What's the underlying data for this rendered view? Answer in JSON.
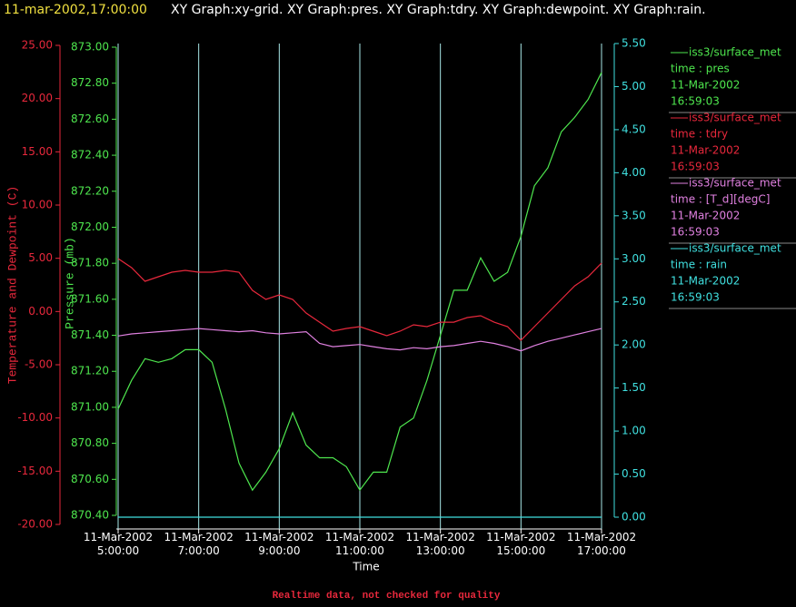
{
  "header": {
    "timestamp": "11-mar-2002,17:00:00",
    "title": "XY Graph:xy-grid.  XY Graph:pres.  XY Graph:tdry.  XY Graph:dewpoint.  XY Graph:rain."
  },
  "chart_data": {
    "type": "line",
    "xlabel": "Time",
    "ylabel": "Temperature and Dewpoint (C)",
    "y2label": "Pressure (mb)",
    "footer": "Realtime data, not checked for quality",
    "xlim": [
      "2002-03-11T05:00",
      "2002-03-11T17:00"
    ],
    "xticks": [
      {
        "value": "2002-03-11T05:00",
        "label": [
          "11-Mar-2002",
          "5:00:00"
        ]
      },
      {
        "value": "2002-03-11T07:00",
        "label": [
          "11-Mar-2002",
          "7:00:00"
        ]
      },
      {
        "value": "2002-03-11T09:00",
        "label": [
          "11-Mar-2002",
          "9:00:00"
        ]
      },
      {
        "value": "2002-03-11T11:00",
        "label": [
          "11-Mar-2002",
          "11:00:00"
        ]
      },
      {
        "value": "2002-03-11T13:00",
        "label": [
          "11-Mar-2002",
          "13:00:00"
        ]
      },
      {
        "value": "2002-03-11T15:00",
        "label": [
          "11-Mar-2002",
          "15:00:00"
        ]
      },
      {
        "value": "2002-03-11T17:00",
        "label": [
          "11-Mar-2002",
          "17:00:00"
        ]
      }
    ],
    "grid": true,
    "ycolor": "#e8283c",
    "ylim": [
      -20,
      25
    ],
    "yticks": [
      {
        "value": -20,
        "label": "-20.00"
      },
      {
        "value": -15,
        "label": "-15.00"
      },
      {
        "value": -10,
        "label": "-10.00"
      },
      {
        "value": -5,
        "label": "-5.00"
      },
      {
        "value": 0,
        "label": "0.00"
      },
      {
        "value": 5,
        "label": "5.00"
      },
      {
        "value": 10,
        "label": "10.00"
      },
      {
        "value": 15,
        "label": "15.00"
      },
      {
        "value": 20,
        "label": "20.00"
      },
      {
        "value": 25,
        "label": "25.00"
      }
    ],
    "y2color": "#4ee64e",
    "y2lim": [
      870.4,
      873.0
    ],
    "y2ticks": [
      {
        "value": 870.4,
        "label": "870.40"
      },
      {
        "value": 870.6,
        "label": "870.60"
      },
      {
        "value": 870.8,
        "label": "870.80"
      },
      {
        "value": 871.0,
        "label": "871.00"
      },
      {
        "value": 871.2,
        "label": "871.20"
      },
      {
        "value": 871.4,
        "label": "871.40"
      },
      {
        "value": 871.6,
        "label": "871.60"
      },
      {
        "value": 871.8,
        "label": "871.80"
      },
      {
        "value": 872.0,
        "label": "872.00"
      },
      {
        "value": 872.2,
        "label": "872.20"
      },
      {
        "value": 872.4,
        "label": "872.40"
      },
      {
        "value": 872.6,
        "label": "872.60"
      },
      {
        "value": 872.8,
        "label": "872.80"
      },
      {
        "value": 873.0,
        "label": "873.00"
      }
    ],
    "y3color": "#40e0e0",
    "y3lim": [
      0,
      5.5
    ],
    "y3ticks": [
      {
        "value": 0,
        "label": "0.00"
      },
      {
        "value": 0.5,
        "label": "0.50"
      },
      {
        "value": 1,
        "label": "1.00"
      },
      {
        "value": 1.5,
        "label": "1.50"
      },
      {
        "value": 2,
        "label": "2.00"
      },
      {
        "value": 2.5,
        "label": "2.50"
      },
      {
        "value": 3,
        "label": "3.00"
      },
      {
        "value": 3.5,
        "label": "3.50"
      },
      {
        "value": 4,
        "label": "4.00"
      },
      {
        "value": 4.5,
        "label": "4.50"
      },
      {
        "value": 5,
        "label": "5.00"
      },
      {
        "value": 5.5,
        "label": "5.50"
      }
    ],
    "x": [
      "2002-03-11T05:00",
      "2002-03-11T05:20",
      "2002-03-11T05:40",
      "2002-03-11T06:00",
      "2002-03-11T06:20",
      "2002-03-11T06:40",
      "2002-03-11T07:00",
      "2002-03-11T07:20",
      "2002-03-11T07:40",
      "2002-03-11T08:00",
      "2002-03-11T08:20",
      "2002-03-11T08:40",
      "2002-03-11T09:00",
      "2002-03-11T09:20",
      "2002-03-11T09:40",
      "2002-03-11T10:00",
      "2002-03-11T10:20",
      "2002-03-11T10:40",
      "2002-03-11T11:00",
      "2002-03-11T11:20",
      "2002-03-11T11:40",
      "2002-03-11T12:00",
      "2002-03-11T12:20",
      "2002-03-11T12:40",
      "2002-03-11T13:00",
      "2002-03-11T13:20",
      "2002-03-11T13:40",
      "2002-03-11T14:00",
      "2002-03-11T14:20",
      "2002-03-11T14:40",
      "2002-03-11T15:00",
      "2002-03-11T15:20",
      "2002-03-11T15:40",
      "2002-03-11T16:00",
      "2002-03-11T16:20",
      "2002-03-11T16:40",
      "2002-03-11T17:00"
    ],
    "series": [
      {
        "name": "iss3/surface_met",
        "legend": [
          "time : pres",
          "11-Mar-2002",
          "16:59:03"
        ],
        "color": "#4ee64e",
        "axis": "y2",
        "values": [
          870.99,
          871.15,
          871.27,
          871.25,
          871.27,
          871.32,
          871.32,
          871.25,
          870.99,
          870.69,
          870.54,
          870.64,
          870.77,
          870.97,
          870.79,
          870.72,
          870.72,
          870.67,
          870.54,
          870.64,
          870.64,
          870.89,
          870.94,
          871.15,
          871.4,
          871.65,
          871.65,
          871.83,
          871.7,
          871.75,
          871.95,
          872.23,
          872.33,
          872.53,
          872.61,
          872.71,
          872.86
        ]
      },
      {
        "name": "iss3/surface_met",
        "legend": [
          "time : tdry",
          "11-Mar-2002",
          "16:59:03"
        ],
        "color": "#e8283c",
        "axis": "y",
        "values": [
          4.97,
          4.12,
          2.84,
          3.27,
          3.69,
          3.86,
          3.69,
          3.69,
          3.86,
          3.69,
          1.99,
          1.14,
          1.56,
          1.14,
          -0.14,
          -1.0,
          -1.85,
          -1.59,
          -1.42,
          -1.85,
          -2.27,
          -1.85,
          -1.25,
          -1.42,
          -1.0,
          -1.0,
          -0.57,
          -0.4,
          -1.0,
          -1.42,
          -2.7,
          -1.42,
          -0.14,
          1.14,
          2.41,
          3.27,
          4.55
        ]
      },
      {
        "name": "iss3/surface_met",
        "legend": [
          "time : [T_d][degC]",
          "11-Mar-2002",
          "16:59:03"
        ],
        "color": "#e080e0",
        "axis": "y",
        "values": [
          -2.3,
          -2.1,
          -2.0,
          -1.9,
          -1.8,
          -1.7,
          -1.6,
          -1.7,
          -1.8,
          -1.9,
          -1.8,
          -2.0,
          -2.1,
          -2.0,
          -1.9,
          -3.0,
          -3.3,
          -3.2,
          -3.1,
          -3.3,
          -3.5,
          -3.6,
          -3.4,
          -3.5,
          -3.3,
          -3.2,
          -3.0,
          -2.8,
          -3.0,
          -3.3,
          -3.7,
          -3.2,
          -2.8,
          -2.5,
          -2.2,
          -1.9,
          -1.6
        ]
      },
      {
        "name": "iss3/surface_met",
        "legend": [
          "time : rain",
          "11-Mar-2002",
          "16:59:03"
        ],
        "color": "#40e0e0",
        "axis": "y3",
        "values": [
          0,
          0,
          0,
          0,
          0,
          0,
          0,
          0,
          0,
          0,
          0,
          0,
          0,
          0,
          0,
          0,
          0,
          0,
          0,
          0,
          0,
          0,
          0,
          0,
          0,
          0,
          0,
          0,
          0,
          0,
          0,
          0,
          0,
          0,
          0,
          0,
          0
        ]
      }
    ]
  }
}
